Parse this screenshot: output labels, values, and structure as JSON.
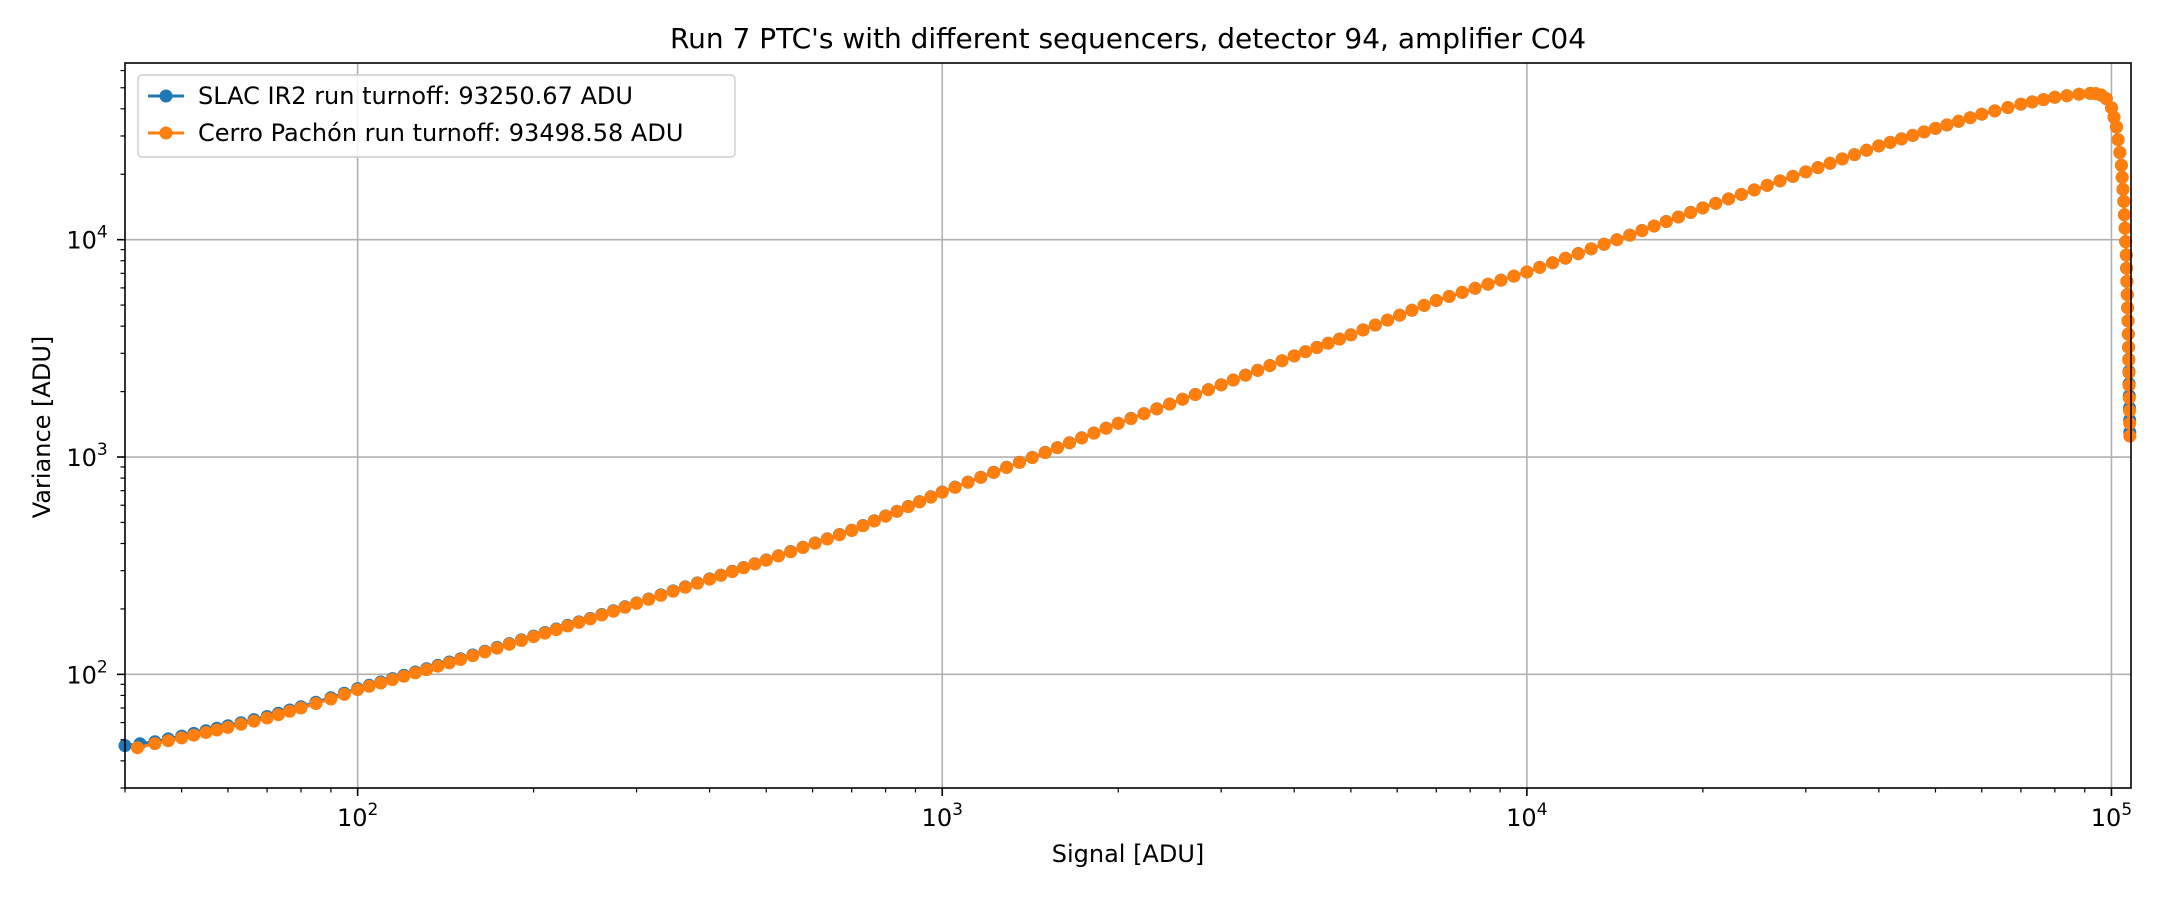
{
  "chart_data": {
    "type": "line",
    "title": "Run 7 PTC's with different sequencers, detector 94, amplifier C04",
    "xlabel": "Signal [ADU]",
    "ylabel": "Variance [ADU]",
    "xscale": "log",
    "yscale": "log",
    "xlim": [
      40,
      108000
    ],
    "ylim": [
      30,
      65000
    ],
    "grid": true,
    "legend_position": "upper-left",
    "x_ticks": [
      {
        "base": "10",
        "exp": "2",
        "value": 100
      },
      {
        "base": "10",
        "exp": "3",
        "value": 1000
      },
      {
        "base": "10",
        "exp": "4",
        "value": 10000
      },
      {
        "base": "10",
        "exp": "5",
        "value": 100000
      }
    ],
    "y_ticks": [
      {
        "base": "10",
        "exp": "2",
        "value": 100
      },
      {
        "base": "10",
        "exp": "3",
        "value": 1000
      },
      {
        "base": "10",
        "exp": "4",
        "value": 10000
      }
    ],
    "series": [
      {
        "name": "SLAC IR2 run turnoff: 93250.67 ADU",
        "color": "#1f77b4",
        "marker": "circle",
        "x": [
          40,
          45,
          50,
          55,
          60,
          70,
          80,
          90,
          100,
          120,
          150,
          200,
          250,
          300,
          400,
          500,
          700,
          1000,
          1500,
          2000,
          3000,
          4000,
          5000,
          7000,
          10000,
          15000,
          20000,
          30000,
          40000,
          50000,
          60000,
          70000,
          80000,
          88000,
          92000,
          94000,
          96000,
          98000,
          100000,
          102000,
          104000,
          105000,
          106000,
          107000,
          107500
        ],
        "y": [
          47,
          49,
          52,
          55,
          58,
          64,
          71,
          78,
          86,
          99,
          118,
          150,
          181,
          213,
          275,
          336,
          460,
          690,
          1050,
          1430,
          2150,
          2920,
          3650,
          5250,
          7100,
          10500,
          14000,
          20500,
          27000,
          32500,
          37800,
          42000,
          45200,
          46700,
          47100,
          47000,
          46300,
          44600,
          40500,
          33000,
          22000,
          15000,
          8500,
          3200,
          1300
        ]
      },
      {
        "name": "Cerro Pachón run turnoff: 93498.58 ADU",
        "color": "#ff7f0e",
        "marker": "circle",
        "x": [
          42,
          45,
          50,
          55,
          60,
          70,
          80,
          90,
          100,
          120,
          150,
          200,
          250,
          300,
          400,
          500,
          700,
          1000,
          1500,
          2000,
          3000,
          4000,
          5000,
          7000,
          10000,
          15000,
          20000,
          30000,
          40000,
          50000,
          60000,
          70000,
          80000,
          88000,
          92000,
          94000,
          96000,
          98000,
          100000,
          102000,
          104000,
          105000,
          106000,
          107000,
          107500
        ],
        "y": [
          46,
          48,
          51,
          54,
          57,
          63,
          70,
          77,
          85,
          98,
          117,
          149,
          180,
          212,
          274,
          335,
          459,
          688,
          1048,
          1428,
          2148,
          2918,
          3648,
          5248,
          7098,
          10498,
          13998,
          20498,
          26998,
          32498,
          37798,
          41998,
          45198,
          46698,
          47098,
          46998,
          46298,
          44598,
          40498,
          32998,
          21998,
          14998,
          8498,
          3198,
          1248
        ]
      }
    ]
  }
}
